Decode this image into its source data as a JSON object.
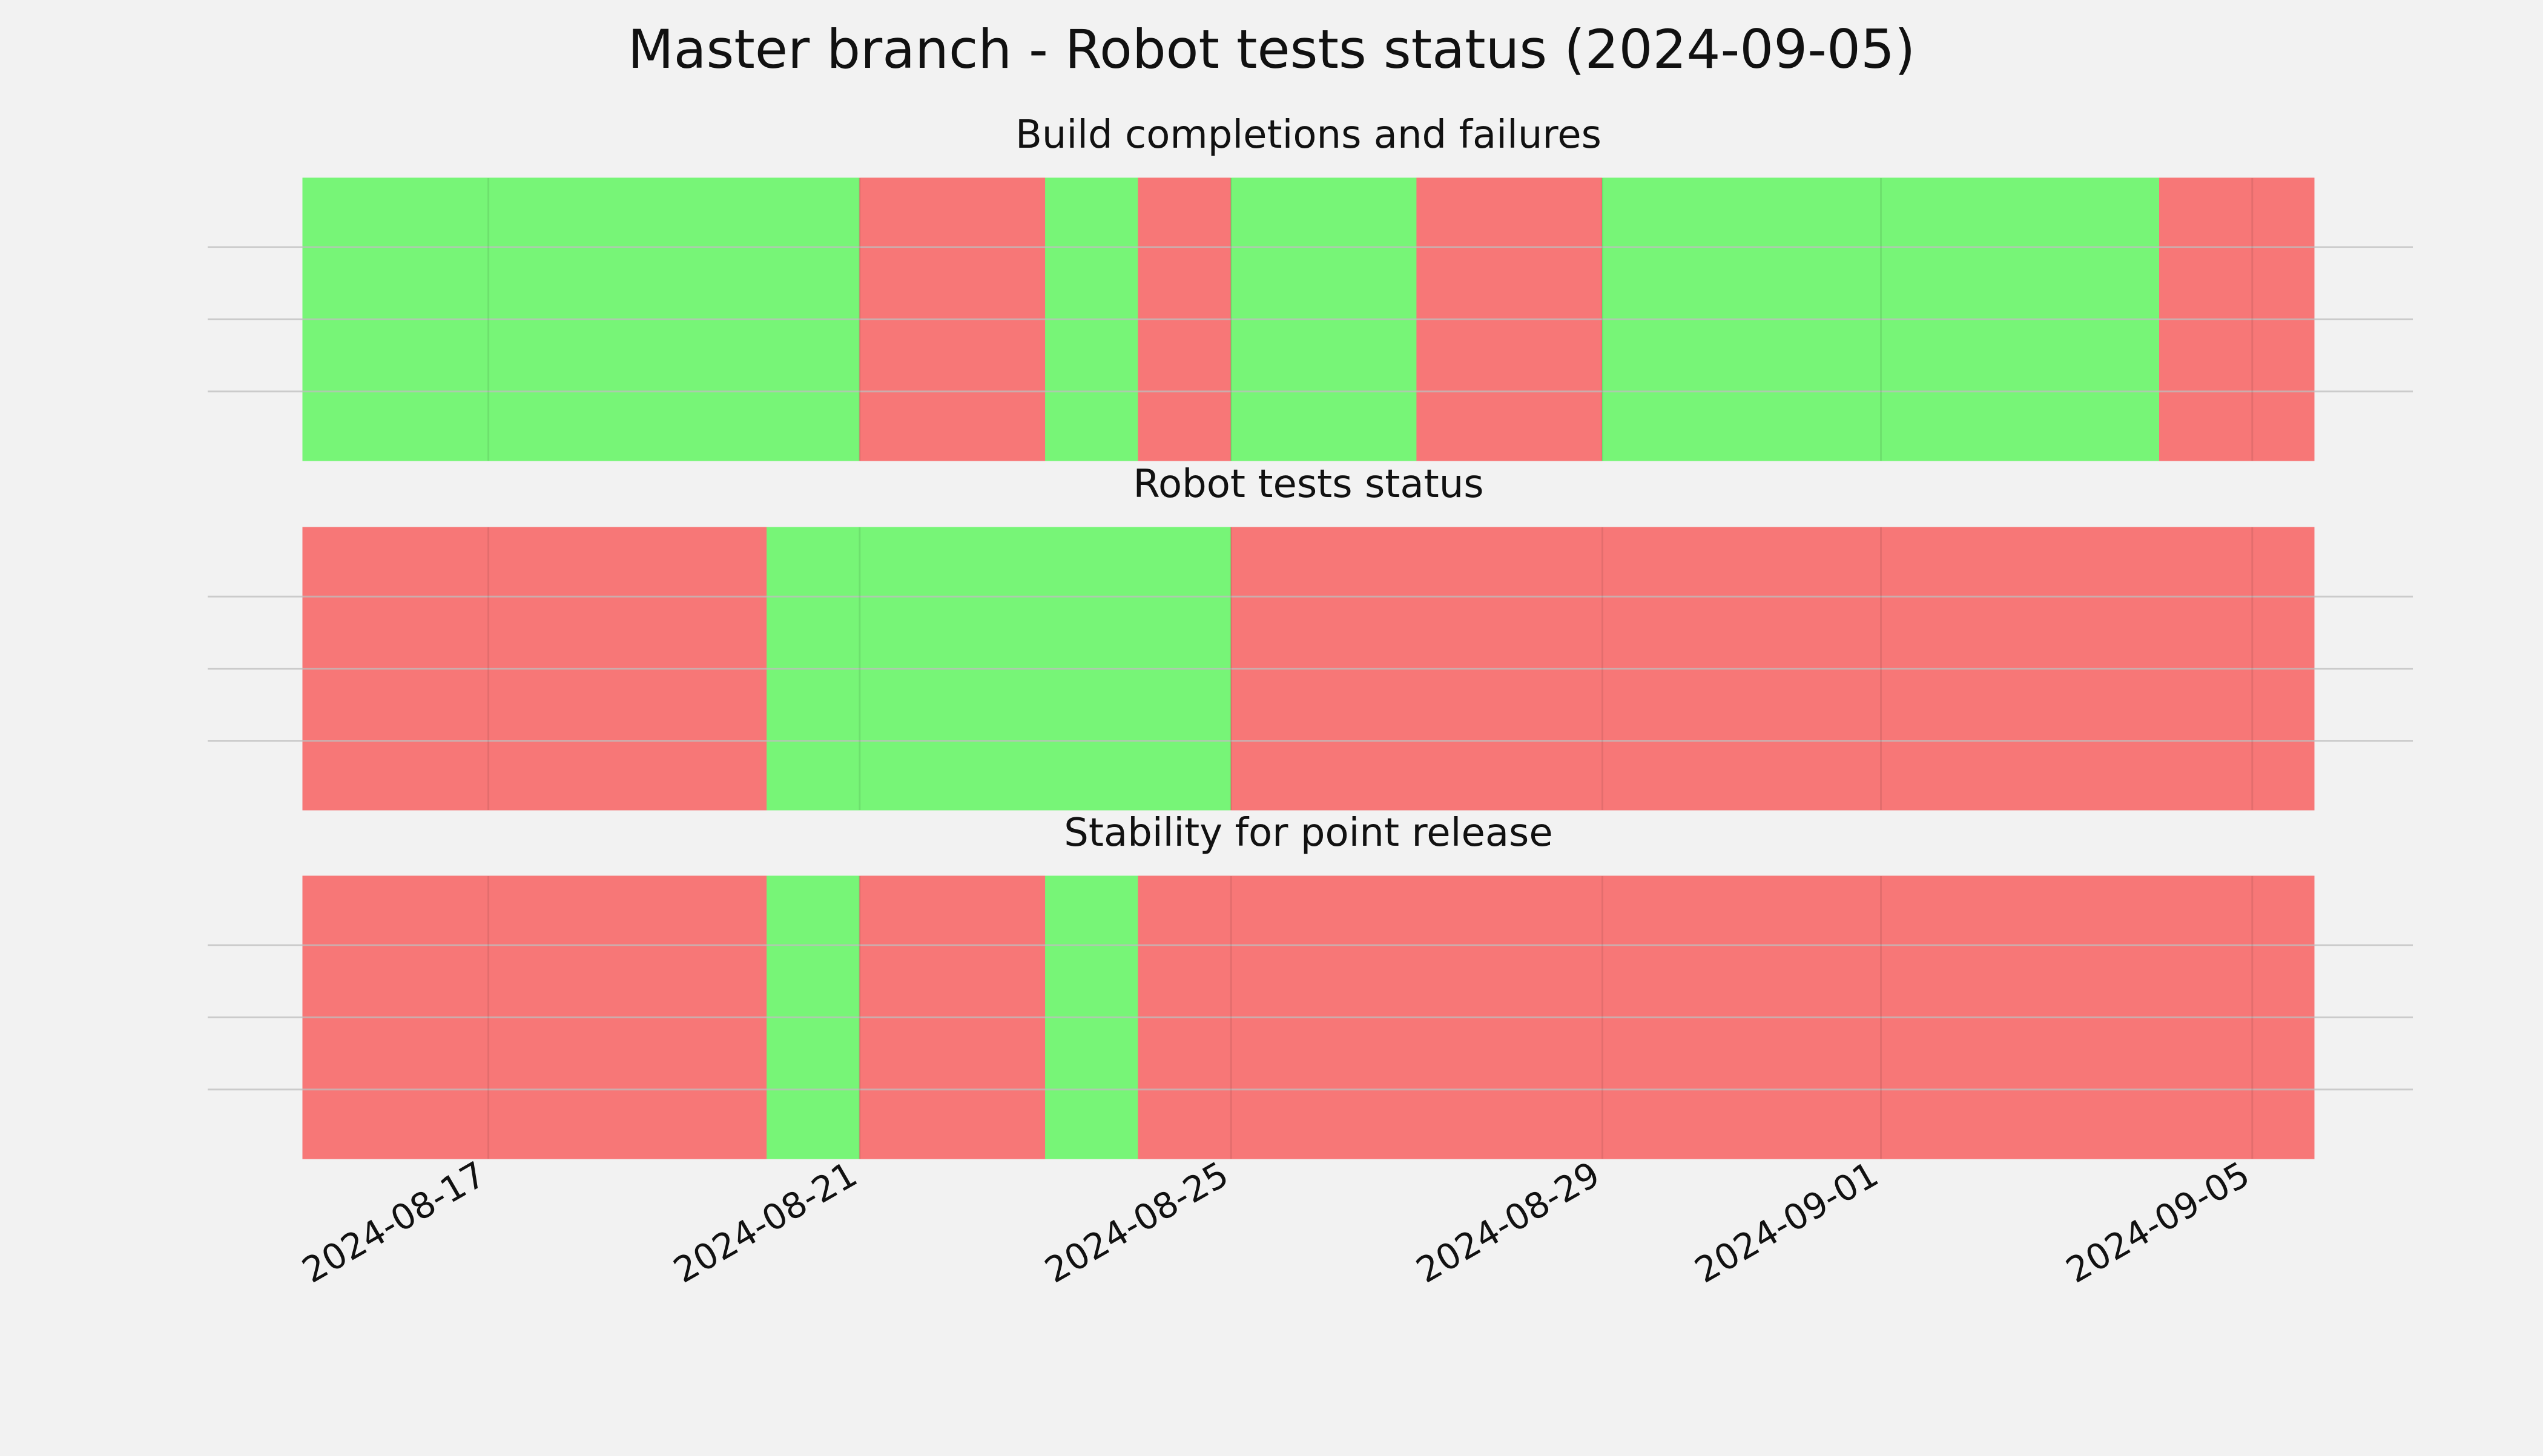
{
  "chart_data": {
    "type": "timeline",
    "title": "Master branch - Robot tests status (2024-09-05)",
    "x_range": [
      "2024-08-15",
      "2024-09-05T16:00"
    ],
    "x_ticks": [
      "2024-08-17",
      "2024-08-21",
      "2024-08-25",
      "2024-08-29",
      "2024-09-01",
      "2024-09-05"
    ],
    "grid": true,
    "colors": {
      "pass": "#77f577",
      "fail": "#f77777"
    },
    "panels": [
      {
        "title": "Build completions and failures",
        "segments": [
          {
            "start": "2024-08-15T00:00",
            "end": "2024-08-21T00:00",
            "status": "pass"
          },
          {
            "start": "2024-08-21T00:00",
            "end": "2024-08-23T00:00",
            "status": "fail"
          },
          {
            "start": "2024-08-23T00:00",
            "end": "2024-08-24T00:00",
            "status": "pass"
          },
          {
            "start": "2024-08-24T00:00",
            "end": "2024-08-25T00:00",
            "status": "fail"
          },
          {
            "start": "2024-08-25T00:00",
            "end": "2024-08-27T00:00",
            "status": "pass"
          },
          {
            "start": "2024-08-27T00:00",
            "end": "2024-08-29T00:00",
            "status": "fail"
          },
          {
            "start": "2024-08-29T00:00",
            "end": "2024-09-04T00:00",
            "status": "pass"
          },
          {
            "start": "2024-09-04T00:00",
            "end": "2024-09-05T16:00",
            "status": "fail"
          }
        ]
      },
      {
        "title": "Robot tests status",
        "segments": [
          {
            "start": "2024-08-15T00:00",
            "end": "2024-08-20T00:00",
            "status": "fail"
          },
          {
            "start": "2024-08-20T00:00",
            "end": "2024-08-25T00:00",
            "status": "pass"
          },
          {
            "start": "2024-08-25T00:00",
            "end": "2024-09-05T16:00",
            "status": "fail"
          }
        ]
      },
      {
        "title": "Stability for point release",
        "segments": [
          {
            "start": "2024-08-15T00:00",
            "end": "2024-08-20T00:00",
            "status": "fail"
          },
          {
            "start": "2024-08-20T00:00",
            "end": "2024-08-21T00:00",
            "status": "pass"
          },
          {
            "start": "2024-08-21T00:00",
            "end": "2024-08-23T00:00",
            "status": "fail"
          },
          {
            "start": "2024-08-23T00:00",
            "end": "2024-08-24T00:00",
            "status": "pass"
          },
          {
            "start": "2024-08-24T00:00",
            "end": "2024-09-05T16:00",
            "status": "fail"
          }
        ]
      }
    ]
  }
}
